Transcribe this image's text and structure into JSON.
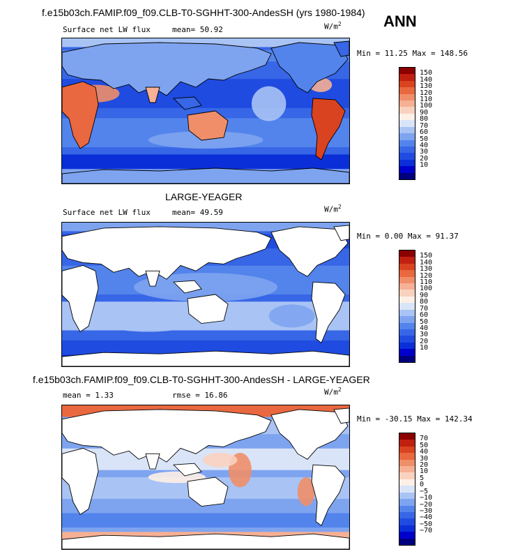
{
  "header": {
    "title": "f.e15b03ch.FAMIP.f09_f09.CLB-T0-SGHHT-300-AndesSH (yrs 1980-1984)",
    "season": "ANN"
  },
  "panels": [
    {
      "label": "Surface net LW flux",
      "stat": "mean=  50.92",
      "units": "W/m",
      "units_exp": "2",
      "minmax": "Min =  11.25 Max = 148.56"
    },
    {
      "title": "LARGE-YEAGER",
      "label": "Surface net LW flux",
      "stat": "mean=  49.59",
      "units": "W/m",
      "units_exp": "2",
      "minmax": "Min =   0.00 Max =  91.37"
    },
    {
      "title": "f.e15b03ch.FAMIP.f09_f09.CLB-T0-SGHHT-300-AndesSH - LARGE-YEAGER",
      "label": "mean =   1.33",
      "stat": "rmse =  16.86",
      "units": "W/m",
      "units_exp": "2",
      "minmax": "Min = -30.15 Max = 142.34"
    }
  ],
  "chart_data": [
    {
      "type": "heatmap",
      "subtitle": "Surface net LW flux",
      "units": "W/m2",
      "mean": 50.92,
      "min": 11.25,
      "max": 148.56,
      "colorbar_levels": [
        10,
        20,
        30,
        40,
        50,
        60,
        70,
        80,
        90,
        100,
        110,
        120,
        130,
        140,
        150
      ],
      "colorbar_labels": [
        "150",
        "140",
        "130",
        "120",
        "110",
        "100",
        "90",
        "80",
        "70",
        "60",
        "50",
        "40",
        "30",
        "20",
        "10"
      ],
      "colors": [
        "#00007f",
        "#0000cc",
        "#0a2fd8",
        "#1f4be0",
        "#3766e6",
        "#5384ec",
        "#7ea4f0",
        "#a9c3f5",
        "#d9e4f8",
        "#fdf0e6",
        "#f9d2bf",
        "#f6b094",
        "#f08e69",
        "#e9683f",
        "#d9431f",
        "#bf2010",
        "#8b0000"
      ]
    },
    {
      "type": "heatmap",
      "title": "LARGE-YEAGER",
      "subtitle": "Surface net LW flux",
      "units": "W/m2",
      "mean": 49.59,
      "min": 0.0,
      "max": 91.37,
      "colorbar_levels": [
        10,
        20,
        30,
        40,
        50,
        60,
        70,
        80,
        90,
        100,
        110,
        120,
        130,
        140,
        150
      ],
      "colorbar_labels": [
        "150",
        "140",
        "130",
        "120",
        "110",
        "100",
        "90",
        "80",
        "70",
        "60",
        "50",
        "40",
        "30",
        "20",
        "10"
      ],
      "colors": [
        "#00007f",
        "#0000cc",
        "#0a2fd8",
        "#1f4be0",
        "#3766e6",
        "#5384ec",
        "#7ea4f0",
        "#a9c3f5",
        "#d9e4f8",
        "#fdf0e6",
        "#f9d2bf",
        "#f6b094",
        "#f08e69",
        "#e9683f",
        "#d9431f",
        "#bf2010",
        "#8b0000"
      ]
    },
    {
      "type": "heatmap",
      "title": "f.e15b03ch.FAMIP.f09_f09.CLB-T0-SGHHT-300-AndesSH - LARGE-YEAGER",
      "units": "W/m2",
      "mean": 1.33,
      "rmse": 16.86,
      "min": -30.15,
      "max": 142.34,
      "colorbar_levels": [
        -70,
        -50,
        -40,
        -30,
        -20,
        -10,
        -5,
        0,
        5,
        10,
        20,
        30,
        40,
        50,
        70
      ],
      "colorbar_labels": [
        "70",
        "50",
        "40",
        "30",
        "20",
        "10",
        "5",
        "0",
        "−5",
        "−10",
        "−20",
        "−30",
        "−40",
        "−50",
        "−70"
      ],
      "colors": [
        "#00007f",
        "#0000cc",
        "#0a2fd8",
        "#1f4be0",
        "#3766e6",
        "#5384ec",
        "#7ea4f0",
        "#a9c3f5",
        "#d9e4f8",
        "#fdf0e6",
        "#f9d2bf",
        "#f6b094",
        "#f08e69",
        "#e9683f",
        "#d9431f",
        "#bf2010",
        "#8b0000"
      ]
    }
  ]
}
